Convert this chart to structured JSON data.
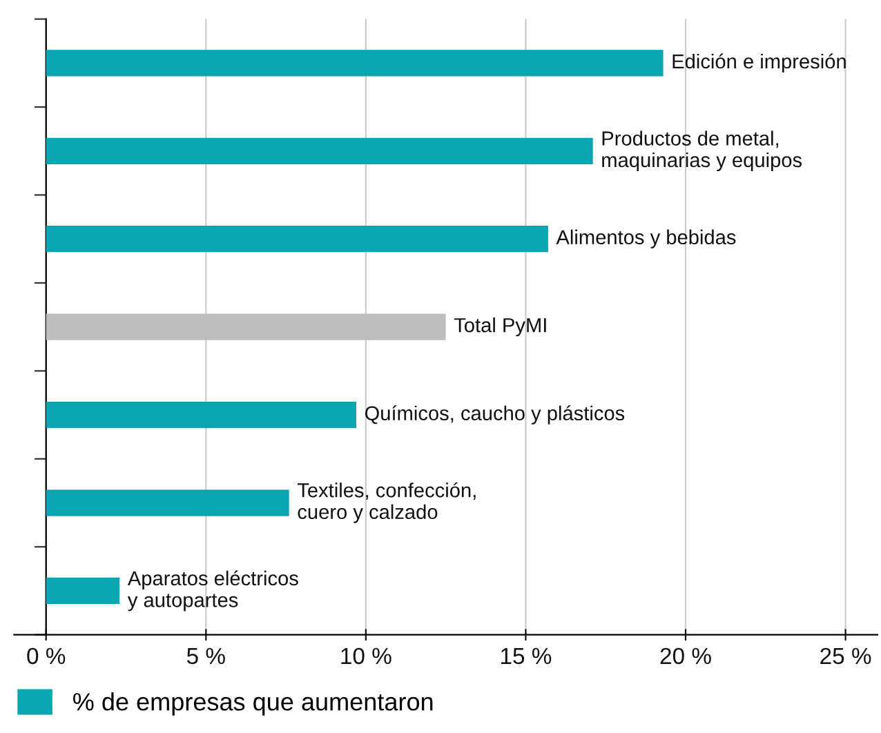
{
  "chart_data": {
    "type": "bar",
    "orientation": "horizontal",
    "categories": [
      "Edición e impresión",
      "Productos de metal,\nmaquinarias y equipos",
      "Alimentos y bebidas",
      "Total PyMI",
      "Químicos, caucho y plásticos",
      "Textiles, confección,\ncuero y calzado",
      "Aparatos eléctricos\ny autopartes"
    ],
    "series": [
      {
        "name": "% de empresas que aumentaron",
        "color": "#0aa5b0",
        "values": [
          19.3,
          17.1,
          15.7,
          12.5,
          9.7,
          7.6,
          2.3
        ],
        "colors": [
          "#0aa5b0",
          "#0aa5b0",
          "#0aa5b0",
          "#bdbdbf",
          "#0aa5b0",
          "#0aa5b0",
          "#0aa5b0"
        ]
      }
    ],
    "xlim": [
      -1,
      26
    ],
    "xticks": [
      {
        "value": 0,
        "label": "0 %"
      },
      {
        "value": 5,
        "label": "5 %"
      },
      {
        "value": 10,
        "label": "10 %"
      },
      {
        "value": 15,
        "label": "15 %"
      },
      {
        "value": 20,
        "label": "20 %"
      },
      {
        "value": 25,
        "label": "25 %"
      }
    ],
    "grid": "x",
    "legend": "bottom left",
    "tick_labels": "x"
  }
}
